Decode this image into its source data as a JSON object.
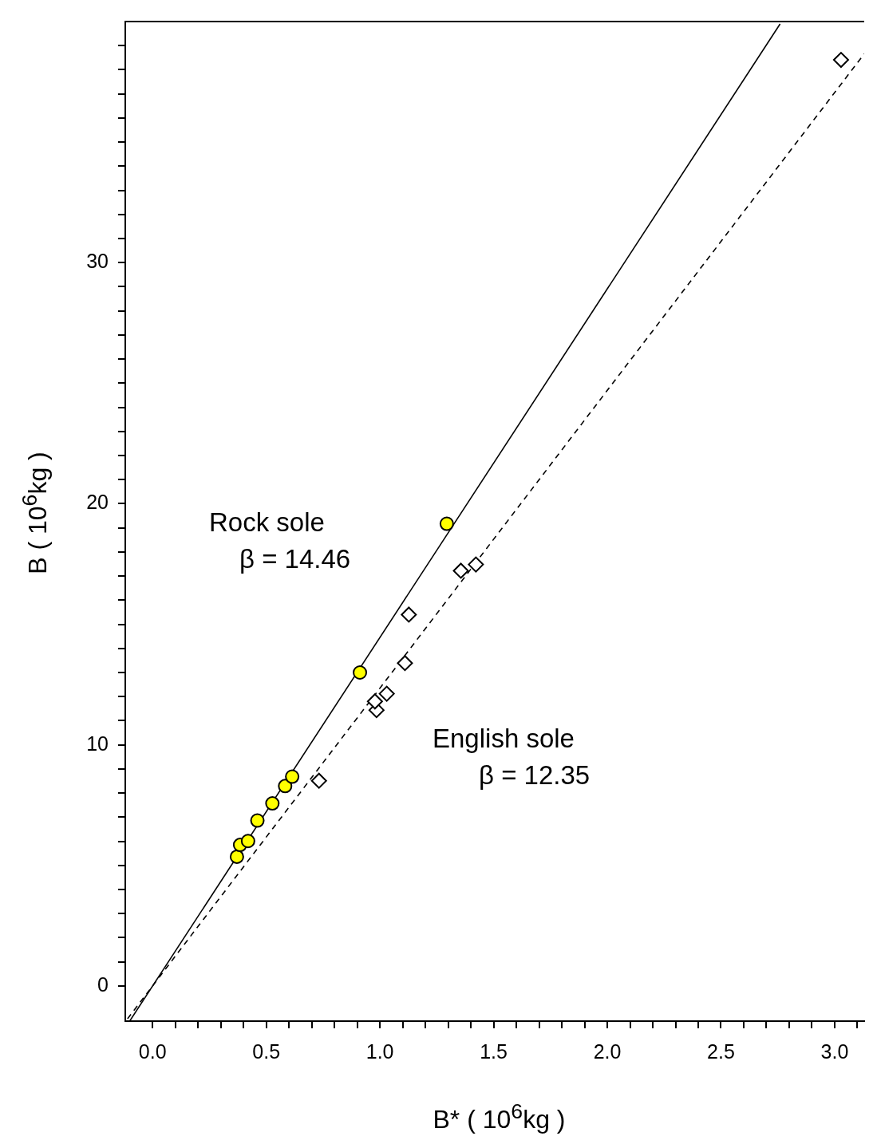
{
  "chart_data": {
    "type": "scatter",
    "xlabel": "B* ( 10$^{6}$kg )",
    "ylabel": "B ( 10$^{6}$kg )",
    "xlim": [
      -0.12,
      3.13
    ],
    "ylim": [
      -1.46,
      40
    ],
    "xticks": [
      {
        "value": 0,
        "label": "0.0"
      },
      {
        "value": 0.1,
        "label": null
      },
      {
        "value": 0.2,
        "label": null
      },
      {
        "value": 0.3,
        "label": null
      },
      {
        "value": 0.4,
        "label": null
      },
      0.5,
      {
        "value": 0.6,
        "label": null
      },
      {
        "value": 0.7,
        "label": null
      },
      {
        "value": 0.8,
        "label": null
      },
      {
        "value": 0.9,
        "label": null
      },
      {
        "value": 1,
        "label": "1.0"
      },
      {
        "value": 1.1,
        "label": null
      },
      {
        "value": 1.2,
        "label": null
      },
      {
        "value": 1.3,
        "label": null
      },
      {
        "value": 1.4,
        "label": null
      },
      1.5,
      {
        "value": 1.6,
        "label": null
      },
      {
        "value": 1.7,
        "label": null
      },
      {
        "value": 1.8,
        "label": null
      },
      {
        "value": 1.9,
        "label": null
      },
      {
        "value": 2,
        "label": "2.0"
      },
      {
        "value": 2.1,
        "label": null
      },
      {
        "value": 2.2,
        "label": null
      },
      {
        "value": 2.3,
        "label": null
      },
      {
        "value": 2.4,
        "label": null
      },
      2.5,
      {
        "value": 2.6,
        "label": null
      },
      {
        "value": 2.7,
        "label": null
      },
      {
        "value": 2.8,
        "label": null
      },
      {
        "value": 2.9,
        "label": null
      },
      {
        "value": 3,
        "label": "3.0"
      },
      {
        "value": 3.1,
        "label": null
      }
    ],
    "yticks": [
      0,
      {
        "value": 1,
        "label": null
      },
      {
        "value": 2,
        "label": null
      },
      {
        "value": 3,
        "label": null
      },
      {
        "value": 4,
        "label": null
      },
      {
        "value": 5,
        "label": null
      },
      {
        "value": 6,
        "label": null
      },
      {
        "value": 7,
        "label": null
      },
      {
        "value": 8,
        "label": null
      },
      {
        "value": 9,
        "label": null
      },
      10,
      {
        "value": 11,
        "label": null
      },
      {
        "value": 12,
        "label": null
      },
      {
        "value": 13,
        "label": null
      },
      {
        "value": 14,
        "label": null
      },
      {
        "value": 15,
        "label": null
      },
      {
        "value": 16,
        "label": null
      },
      {
        "value": 17,
        "label": null
      },
      {
        "value": 18,
        "label": null
      },
      {
        "value": 19,
        "label": null
      },
      20,
      {
        "value": 21,
        "label": null
      },
      {
        "value": 22,
        "label": null
      },
      {
        "value": 23,
        "label": null
      },
      {
        "value": 24,
        "label": null
      },
      {
        "value": 25,
        "label": null
      },
      {
        "value": 26,
        "label": null
      },
      {
        "value": 27,
        "label": null
      },
      {
        "value": 28,
        "label": null
      },
      {
        "value": 29,
        "label": null
      },
      30,
      {
        "value": 31,
        "label": null
      },
      {
        "value": 32,
        "label": null
      },
      {
        "value": 33,
        "label": null
      },
      {
        "value": 34,
        "label": null
      },
      {
        "value": 35,
        "label": null
      },
      {
        "value": 36,
        "label": null
      },
      {
        "value": 37,
        "label": null
      },
      {
        "value": 38,
        "label": null
      },
      {
        "value": 39,
        "label": null
      }
    ],
    "grid": false,
    "series": [
      {
        "type": "line",
        "color": "#000000",
        "line_style": "solid",
        "marker": "none",
        "x": [
          -0.1,
          2.76
        ],
        "values": [
          -1.45,
          39.9
        ]
      },
      {
        "type": "line",
        "color": "#000000",
        "line_style": "dashed",
        "marker": "none",
        "x": [
          -0.11,
          3.13
        ],
        "values": [
          -1.36,
          38.66
        ]
      },
      {
        "color": "#ffff00",
        "marker": "circle",
        "x": [
          0.371,
          0.385,
          0.42,
          0.461,
          0.527,
          0.583,
          0.614,
          0.912,
          1.294
        ],
        "values": [
          5.36,
          5.85,
          6.01,
          6.86,
          7.57,
          8.29,
          8.68,
          13.0,
          19.17
        ]
      },
      {
        "color": "#000000",
        "marker": "diamond",
        "x": [
          0.732,
          0.985,
          0.978,
          1.03,
          1.11,
          1.127,
          1.356,
          1.422,
          3.028
        ],
        "values": [
          8.51,
          11.44,
          11.8,
          12.12,
          13.39,
          15.4,
          17.22,
          17.48,
          38.41
        ]
      }
    ],
    "annotations": [
      "Rock sole",
      "β = 14.46",
      "English sole",
      "β = 12.35"
    ]
  }
}
